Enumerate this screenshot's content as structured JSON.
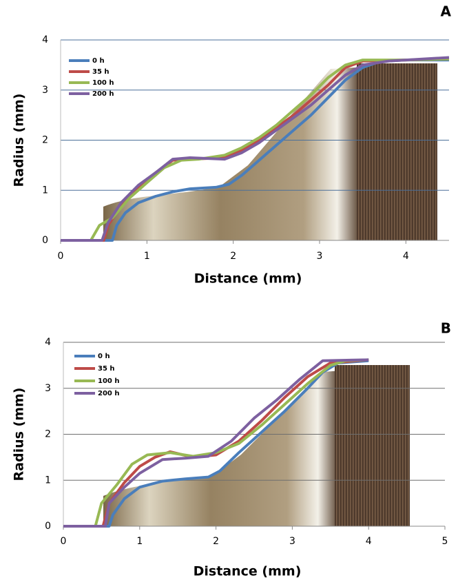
{
  "chart_data": [
    {
      "type": "line",
      "panel_label": "A",
      "x_label": "Distance (mm)",
      "y_label": "Radius (mm)",
      "xlim": [
        0,
        4.5
      ],
      "xticks": [
        0,
        1,
        2,
        3,
        4
      ],
      "ylim": [
        0,
        4
      ],
      "yticks": [
        0,
        1,
        2,
        3,
        4
      ],
      "grid": true,
      "grid_color": "#4a6f99",
      "legend": "upper left",
      "series": [
        {
          "name": "0 h",
          "color": "#4a7ebb",
          "x": [
            0,
            0.6,
            0.65,
            0.75,
            0.9,
            1.1,
            1.3,
            1.5,
            1.8,
            1.95,
            2.1,
            2.3,
            2.5,
            2.7,
            2.9,
            3.1,
            3.3,
            3.5,
            3.7,
            4,
            4.5
          ],
          "values": [
            0,
            0,
            0.3,
            0.55,
            0.75,
            0.88,
            0.97,
            1.03,
            1.06,
            1.12,
            1.3,
            1.6,
            1.9,
            2.2,
            2.5,
            2.85,
            3.2,
            3.45,
            3.57,
            3.6,
            3.6
          ]
        },
        {
          "name": "35 h",
          "color": "#be4b48",
          "x": [
            0,
            0.5,
            0.55,
            0.7,
            0.9,
            1.1,
            1.3,
            1.5,
            1.9,
            2.1,
            2.3,
            2.5,
            2.7,
            2.9,
            3.1,
            3.3,
            3.5,
            4,
            4.5
          ],
          "values": [
            0,
            0,
            0.3,
            0.7,
            1.05,
            1.35,
            1.6,
            1.62,
            1.65,
            1.8,
            2.0,
            2.25,
            2.5,
            2.8,
            3.1,
            3.45,
            3.58,
            3.6,
            3.62
          ]
        },
        {
          "name": "100 h",
          "color": "#98b954",
          "x": [
            0,
            0.35,
            0.45,
            0.6,
            0.8,
            1.0,
            1.2,
            1.4,
            1.6,
            1.9,
            2.1,
            2.3,
            2.5,
            2.7,
            2.9,
            3.1,
            3.3,
            3.5,
            4,
            4.5
          ],
          "values": [
            0,
            0,
            0.3,
            0.45,
            0.85,
            1.15,
            1.45,
            1.6,
            1.62,
            1.7,
            1.85,
            2.05,
            2.3,
            2.6,
            2.9,
            3.25,
            3.5,
            3.6,
            3.6,
            3.62
          ]
        },
        {
          "name": "200 h",
          "color": "#7d60a0",
          "x": [
            0,
            0.48,
            0.55,
            0.7,
            0.9,
            1.1,
            1.3,
            1.5,
            1.9,
            2.1,
            2.3,
            2.5,
            2.7,
            2.9,
            3.1,
            3.3,
            3.5,
            3.8,
            4.5
          ],
          "values": [
            0,
            0,
            0.35,
            0.75,
            1.1,
            1.35,
            1.62,
            1.65,
            1.62,
            1.75,
            1.95,
            2.2,
            2.45,
            2.7,
            3.0,
            3.3,
            3.5,
            3.58,
            3.65
          ]
        }
      ]
    },
    {
      "type": "line",
      "panel_label": "B",
      "x_label": "Distance (mm)",
      "y_label": "Radius (mm)",
      "xlim": [
        0,
        5
      ],
      "xticks": [
        0,
        1,
        2,
        3,
        4,
        5
      ],
      "ylim": [
        0,
        4
      ],
      "yticks": [
        0,
        1,
        2,
        3,
        4
      ],
      "grid": true,
      "grid_color": "#6e6e6e",
      "legend": "upper left",
      "series": [
        {
          "name": "0 h",
          "color": "#4a7ebb",
          "x": [
            0,
            0.6,
            0.65,
            0.8,
            1.0,
            1.3,
            1.6,
            1.9,
            2.05,
            2.3,
            2.6,
            2.9,
            3.2,
            3.4,
            3.6,
            4.0
          ],
          "values": [
            0,
            0,
            0.25,
            0.6,
            0.85,
            0.98,
            1.03,
            1.07,
            1.2,
            1.6,
            2.05,
            2.5,
            3.0,
            3.35,
            3.55,
            3.6
          ]
        },
        {
          "name": "35 h",
          "color": "#be4b48",
          "x": [
            0,
            0.52,
            0.6,
            0.8,
            1.0,
            1.2,
            1.4,
            1.7,
            2.0,
            2.3,
            2.6,
            2.9,
            3.2,
            3.5,
            4.0
          ],
          "values": [
            0,
            0,
            0.5,
            0.95,
            1.3,
            1.5,
            1.62,
            1.5,
            1.55,
            1.85,
            2.3,
            2.8,
            3.25,
            3.55,
            3.62
          ]
        },
        {
          "name": "100 h",
          "color": "#98b954",
          "x": [
            0,
            0.42,
            0.5,
            0.7,
            0.9,
            1.1,
            1.4,
            1.7,
            2.0,
            2.3,
            2.6,
            2.9,
            3.2,
            3.5,
            3.7,
            4.0
          ],
          "values": [
            0,
            0,
            0.5,
            0.9,
            1.35,
            1.55,
            1.6,
            1.52,
            1.6,
            1.8,
            2.2,
            2.65,
            3.1,
            3.5,
            3.6,
            3.62
          ]
        },
        {
          "name": "200 h",
          "color": "#7d60a0",
          "x": [
            0,
            0.55,
            0.6,
            0.8,
            1.0,
            1.3,
            1.6,
            1.9,
            2.2,
            2.5,
            2.8,
            3.1,
            3.4,
            4.0
          ],
          "values": [
            0,
            0,
            0.5,
            0.85,
            1.15,
            1.45,
            1.48,
            1.52,
            1.85,
            2.35,
            2.75,
            3.2,
            3.6,
            3.62
          ]
        }
      ]
    }
  ]
}
